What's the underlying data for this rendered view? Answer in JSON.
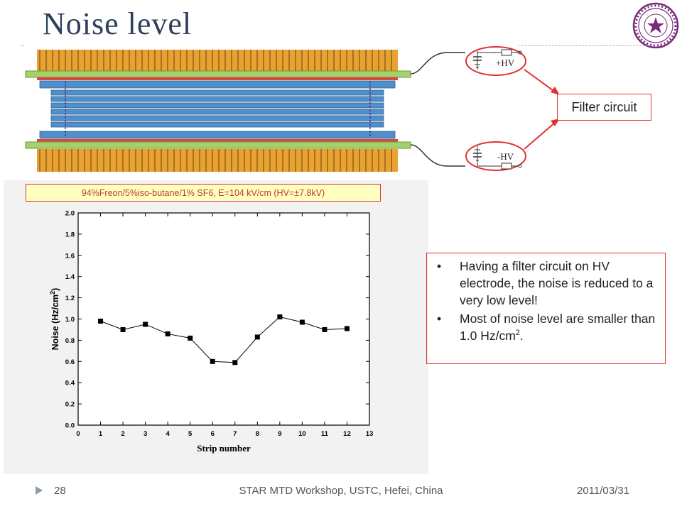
{
  "slide": {
    "title": "Noise level",
    "diagram": {
      "hv_plus": "+HV",
      "hv_minus": "-HV",
      "callout": "Filter circuit"
    },
    "gas_label": "94%Freon/5%iso-butane/1% SF6, E=104 kV/cm (HV=±7.8kV)",
    "bullets": [
      {
        "text": "Having a filter circuit on HV electrode, the noise is reduced to a very low level!"
      },
      {
        "text_before": "Most of noise level are smaller than 1.0 Hz/cm",
        "sup": "2",
        "text_after": "."
      }
    ],
    "footer": {
      "page": "28",
      "venue": "STAR MTD Workshop, USTC, Hefei, China",
      "date": "2011/03/31"
    }
  },
  "colors": {
    "title": "#2e3f5c",
    "accent_border": "#e03030",
    "gas_label_text": "#c0392b",
    "gas_label_bg": "#ffffc0",
    "electrode_gold": "#e9a232",
    "glass_blue": "#4f8fcc",
    "pcb_green": "#a3d16b"
  },
  "chart_data": {
    "type": "line",
    "xlabel": "Strip number",
    "ylabel": "Noise (Hz/cm",
    "ylabel_sup": "2",
    "ylabel_end": ")",
    "xlim": [
      0,
      13
    ],
    "ylim": [
      0.0,
      2.0
    ],
    "xticks": [
      "0",
      "1",
      "2",
      "3",
      "4",
      "5",
      "6",
      "7",
      "8",
      "9",
      "10",
      "11",
      "12",
      "13"
    ],
    "yticks": [
      "0.0",
      "0.2",
      "0.4",
      "0.6",
      "0.8",
      "1.0",
      "1.2",
      "1.4",
      "1.6",
      "1.8",
      "2.0"
    ],
    "x": [
      1,
      2,
      3,
      4,
      5,
      6,
      7,
      8,
      9,
      10,
      11,
      12
    ],
    "y": [
      0.98,
      0.9,
      0.95,
      0.86,
      0.82,
      0.6,
      0.59,
      0.83,
      1.02,
      0.97,
      0.9,
      0.91
    ],
    "marker": "square",
    "grid": false
  }
}
